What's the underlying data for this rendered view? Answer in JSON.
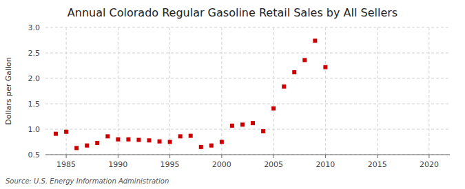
{
  "chart_data": {
    "type": "scatter",
    "title": "Annual Colorado Regular Gasoline Retail Sales by All Sellers",
    "ylabel": "Dollars per Gallon",
    "annotations": [
      "Source: U.S. Energy Information Administration"
    ],
    "x": [
      1984,
      1985,
      1986,
      1987,
      1988,
      1989,
      1990,
      1991,
      1992,
      1993,
      1994,
      1995,
      1996,
      1997,
      1998,
      1999,
      2000,
      2001,
      2002,
      2003,
      2004,
      2005,
      2006,
      2007,
      2008,
      2009,
      2010
    ],
    "values": [
      0.91,
      0.95,
      0.63,
      0.68,
      0.73,
      0.86,
      0.8,
      0.8,
      0.79,
      0.78,
      0.76,
      0.75,
      0.86,
      0.87,
      0.65,
      0.68,
      0.75,
      1.07,
      1.09,
      1.12,
      0.96,
      1.41,
      1.84,
      2.12,
      2.36,
      2.74,
      2.22
    ],
    "color": "#cc0000",
    "marker": "square",
    "xlim": [
      1983,
      2022
    ],
    "ylim": [
      0.5,
      3.0
    ],
    "xticks": [
      1985,
      1990,
      1995,
      2000,
      2005,
      2010,
      2015,
      2020
    ],
    "yticks": [
      0.5,
      {
        "value": 1.0,
        "label": "1.0"
      },
      1.5,
      {
        "value": 2.0,
        "label": "2.0"
      },
      2.5,
      {
        "value": 3.0,
        "label": "3.0"
      }
    ],
    "grid": true
  }
}
